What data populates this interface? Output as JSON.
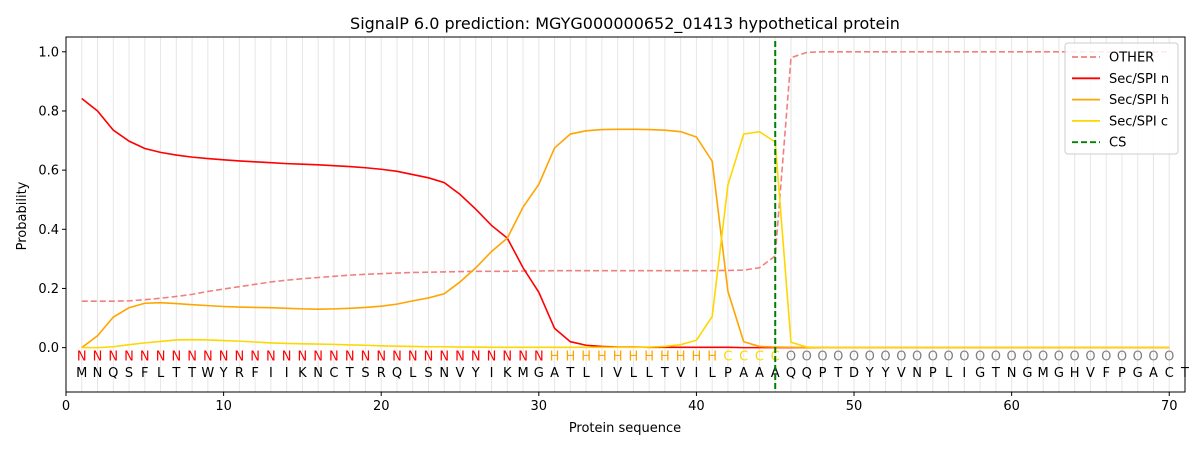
{
  "chart_data": {
    "type": "line",
    "title": "SignalP 6.0 prediction: MGYG000000652_01413 hypothetical protein",
    "xlabel": "Protein sequence",
    "ylabel": "Probability",
    "xlim": [
      0,
      71
    ],
    "ylim": [
      -0.15,
      1.05
    ],
    "xticks": [
      0,
      10,
      20,
      30,
      40,
      50,
      60,
      70
    ],
    "yticks": [
      0.0,
      0.2,
      0.4,
      0.6,
      0.8,
      1.0
    ],
    "xtick_labels": [
      "0",
      "10",
      "20",
      "30",
      "40",
      "50",
      "60",
      "70"
    ],
    "ytick_labels": [
      "0.0",
      "0.2",
      "0.4",
      "0.6",
      "0.8",
      "1.0"
    ],
    "grid": "vertical",
    "legend_position": "top-right",
    "sequence": [
      "M",
      "N",
      "Q",
      "S",
      "F",
      "L",
      "T",
      "T",
      "W",
      "Y",
      "R",
      "F",
      "I",
      "I",
      "K",
      "N",
      "C",
      "T",
      "S",
      "R",
      "Q",
      "L",
      "S",
      "N",
      "V",
      "Y",
      "I",
      "K",
      "M",
      "G",
      "A",
      "T",
      "L",
      "I",
      "V",
      "L",
      "L",
      "T",
      "V",
      "I",
      "L",
      "P",
      "A",
      "A",
      "A",
      "Q",
      "Q",
      "P",
      "T",
      "D",
      "Y",
      "Y",
      "V",
      "N",
      "P",
      "L",
      "I",
      "G",
      "T",
      "N",
      "G",
      "M",
      "G",
      "H",
      "V",
      "F",
      "P",
      "G",
      "A",
      "C",
      "T"
    ],
    "labels": [
      "N",
      "N",
      "N",
      "N",
      "N",
      "N",
      "N",
      "N",
      "N",
      "N",
      "N",
      "N",
      "N",
      "N",
      "N",
      "N",
      "N",
      "N",
      "N",
      "N",
      "N",
      "N",
      "N",
      "N",
      "N",
      "N",
      "N",
      "N",
      "N",
      "N",
      "H",
      "H",
      "H",
      "H",
      "H",
      "H",
      "H",
      "H",
      "H",
      "H",
      "H",
      "C",
      "C",
      "C",
      "C",
      "O",
      "O",
      "O",
      "O",
      "O",
      "O",
      "O",
      "O",
      "O",
      "O",
      "O",
      "O",
      "O",
      "O",
      "O",
      "O",
      "O",
      "O",
      "O",
      "O",
      "O",
      "O",
      "O",
      "O",
      "O"
    ],
    "label_colors": {
      "N": "#ff0000",
      "H": "#ffa500",
      "C": "#ffd700",
      "O": "#808080"
    },
    "cs_position": 45,
    "series": [
      {
        "name": "OTHER",
        "color": "#f08080",
        "dash": true,
        "values": [
          0.157,
          0.157,
          0.157,
          0.158,
          0.162,
          0.167,
          0.173,
          0.18,
          0.19,
          0.198,
          0.206,
          0.214,
          0.222,
          0.228,
          0.233,
          0.237,
          0.241,
          0.245,
          0.248,
          0.25,
          0.252,
          0.254,
          0.255,
          0.256,
          0.257,
          0.258,
          0.258,
          0.258,
          0.259,
          0.259,
          0.26,
          0.26,
          0.26,
          0.26,
          0.26,
          0.26,
          0.26,
          0.26,
          0.26,
          0.26,
          0.26,
          0.261,
          0.262,
          0.27,
          0.31,
          0.98,
          0.998,
          1.0,
          1.0,
          1.0,
          1.0,
          1.0,
          1.0,
          1.0,
          1.0,
          1.0,
          1.0,
          1.0,
          1.0,
          1.0,
          1.0,
          1.0,
          1.0,
          1.0,
          1.0,
          1.0,
          1.0,
          1.0,
          1.0,
          1.0
        ]
      },
      {
        "name": "Sec/SPI n",
        "color": "#ff0000",
        "dash": false,
        "values": [
          0.842,
          0.8,
          0.735,
          0.698,
          0.673,
          0.66,
          0.651,
          0.644,
          0.639,
          0.635,
          0.631,
          0.628,
          0.625,
          0.622,
          0.62,
          0.618,
          0.615,
          0.612,
          0.608,
          0.603,
          0.596,
          0.585,
          0.574,
          0.558,
          0.518,
          0.468,
          0.413,
          0.37,
          0.27,
          0.187,
          0.065,
          0.02,
          0.008,
          0.004,
          0.002,
          0.002,
          0.001,
          0.001,
          0.001,
          0.001,
          0.001,
          0.001,
          0.0,
          0.0,
          0.0,
          0.0,
          0.0,
          0.0,
          0.0,
          0.0,
          0.0,
          0.0,
          0.0,
          0.0,
          0.0,
          0.0,
          0.0,
          0.0,
          0.0,
          0.0,
          0.0,
          0.0,
          0.0,
          0.0,
          0.0,
          0.0,
          0.0,
          0.0,
          0.0,
          0.0
        ]
      },
      {
        "name": "Sec/SPI h",
        "color": "#ffa500",
        "dash": false,
        "values": [
          0.0,
          0.04,
          0.103,
          0.135,
          0.15,
          0.152,
          0.149,
          0.145,
          0.142,
          0.139,
          0.137,
          0.136,
          0.135,
          0.133,
          0.131,
          0.13,
          0.131,
          0.133,
          0.136,
          0.14,
          0.147,
          0.158,
          0.168,
          0.182,
          0.222,
          0.27,
          0.325,
          0.37,
          0.475,
          0.552,
          0.675,
          0.722,
          0.733,
          0.737,
          0.738,
          0.738,
          0.737,
          0.735,
          0.73,
          0.712,
          0.63,
          0.19,
          0.02,
          0.004,
          0.002,
          0.001,
          0.0,
          0.0,
          0.0,
          0.0,
          0.0,
          0.0,
          0.0,
          0.0,
          0.0,
          0.0,
          0.0,
          0.0,
          0.0,
          0.0,
          0.0,
          0.0,
          0.0,
          0.0,
          0.0,
          0.0,
          0.0,
          0.0,
          0.0,
          0.0
        ]
      },
      {
        "name": "Sec/SPI c",
        "color": "#ffd700",
        "dash": false,
        "values": [
          0.0,
          0.0,
          0.003,
          0.01,
          0.016,
          0.021,
          0.026,
          0.027,
          0.026,
          0.024,
          0.022,
          0.019,
          0.016,
          0.014,
          0.013,
          0.012,
          0.011,
          0.009,
          0.008,
          0.006,
          0.005,
          0.004,
          0.003,
          0.003,
          0.002,
          0.002,
          0.001,
          0.001,
          0.001,
          0.001,
          0.001,
          0.001,
          0.001,
          0.001,
          0.001,
          0.001,
          0.002,
          0.004,
          0.01,
          0.025,
          0.105,
          0.55,
          0.722,
          0.73,
          0.695,
          0.018,
          0.002,
          0.0,
          0.0,
          0.0,
          0.0,
          0.0,
          0.0,
          0.0,
          0.0,
          0.0,
          0.0,
          0.0,
          0.0,
          0.0,
          0.0,
          0.0,
          0.0,
          0.0,
          0.0,
          0.0,
          0.0,
          0.0,
          0.0,
          0.0
        ]
      }
    ],
    "legend": [
      {
        "label": "OTHER",
        "color": "#f08080",
        "dash": true
      },
      {
        "label": "Sec/SPI n",
        "color": "#ff0000",
        "dash": false
      },
      {
        "label": "Sec/SPI h",
        "color": "#ffa500",
        "dash": false
      },
      {
        "label": "Sec/SPI c",
        "color": "#ffd700",
        "dash": false
      },
      {
        "label": "CS",
        "color": "#008000",
        "dash": true
      }
    ]
  }
}
